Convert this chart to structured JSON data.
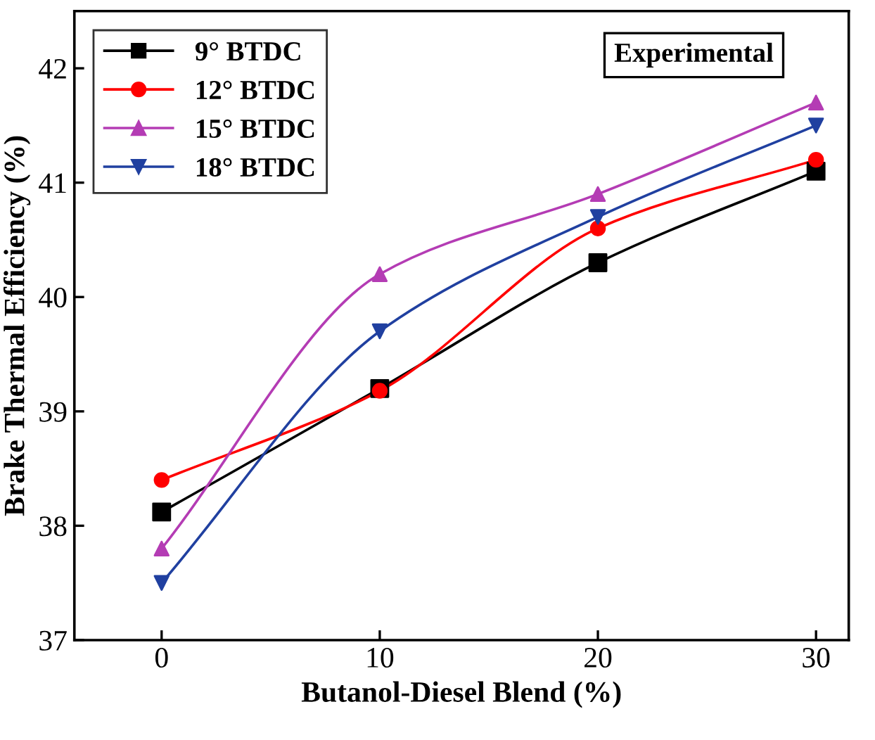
{
  "chart_data": {
    "type": "line",
    "xlabel": "Butanol-Diesel Blend (%)",
    "ylabel": "Brake Thermal Efficiency (%)",
    "x": [
      0,
      10,
      20,
      30
    ],
    "xlim": [
      -4,
      31.5
    ],
    "xticks": [
      0,
      10,
      20,
      30
    ],
    "ylim": [
      37,
      42.5
    ],
    "yticks": [
      37,
      38,
      39,
      40,
      41,
      42
    ],
    "grid": false,
    "legend": "top left",
    "annotations": [
      "Experimental"
    ],
    "series": [
      {
        "name": "9° BTDC",
        "color": "#000000",
        "marker": "square",
        "values": [
          38.12,
          39.2,
          40.3,
          41.1
        ]
      },
      {
        "name": "12° BTDC",
        "color": "#ff0000",
        "marker": "circle",
        "values": [
          38.4,
          39.18,
          40.6,
          41.2
        ]
      },
      {
        "name": "15° BTDC",
        "color": "#b43cb4",
        "marker": "triangle",
        "values": [
          37.8,
          40.2,
          40.9,
          41.7
        ]
      },
      {
        "name": "18° BTDC",
        "color": "#2040a0",
        "marker": "triangle_down",
        "values": [
          37.5,
          39.7,
          40.7,
          41.5
        ]
      }
    ]
  }
}
